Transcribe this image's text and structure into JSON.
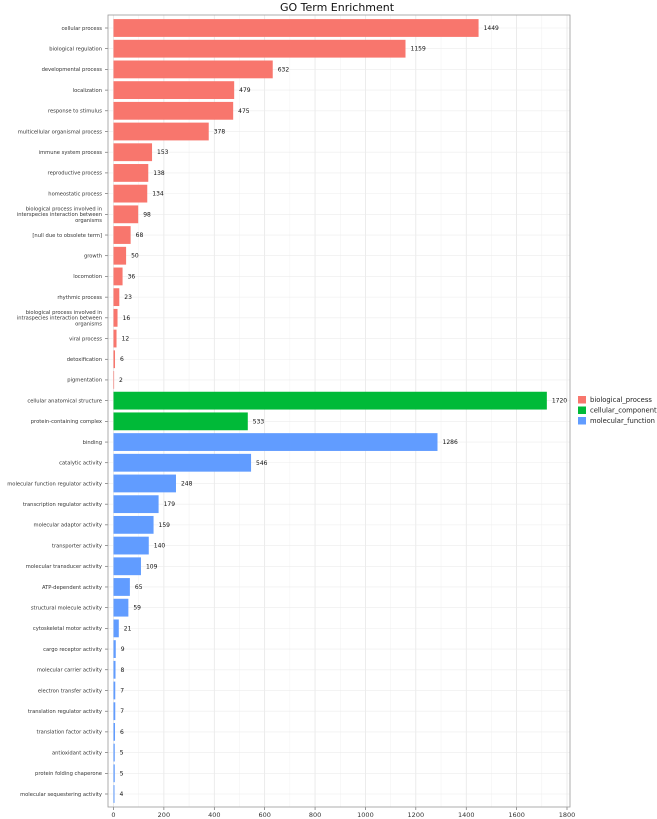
{
  "chart_data": {
    "type": "bar",
    "orientation": "horizontal",
    "title": "GO Term Enrichment",
    "xlabel": "",
    "ylabel": "",
    "xlim": [
      0,
      1800
    ],
    "x_ticks": [
      0,
      200,
      400,
      600,
      800,
      1000,
      1200,
      1400,
      1600,
      1800
    ],
    "grid": true,
    "legend_position": "right",
    "groups": [
      {
        "name": "biological_process",
        "color": "#F8766D"
      },
      {
        "name": "cellular_component",
        "color": "#00BA38"
      },
      {
        "name": "molecular_function",
        "color": "#619CFF"
      }
    ],
    "bars": [
      {
        "label": "cellular process",
        "value": 1449,
        "group": "biological_process"
      },
      {
        "label": "biological regulation",
        "value": 1159,
        "group": "biological_process"
      },
      {
        "label": "developmental process",
        "value": 632,
        "group": "biological_process"
      },
      {
        "label": "localization",
        "value": 479,
        "group": "biological_process"
      },
      {
        "label": "response to stimulus",
        "value": 475,
        "group": "biological_process"
      },
      {
        "label": "multicellular organismal process",
        "value": 378,
        "group": "biological_process"
      },
      {
        "label": "immune system process",
        "value": 153,
        "group": "biological_process"
      },
      {
        "label": "reproductive process",
        "value": 138,
        "group": "biological_process"
      },
      {
        "label": "homeostatic process",
        "value": 134,
        "group": "biological_process"
      },
      {
        "label": "biological process involved in interspecies interaction between organisms",
        "lines": [
          "biological process involved in",
          "interspecies interaction between",
          "organisms"
        ],
        "value": 98,
        "group": "biological_process"
      },
      {
        "label": "[null due to obsolete term]",
        "value": 68,
        "group": "biological_process"
      },
      {
        "label": "growth",
        "value": 50,
        "group": "biological_process"
      },
      {
        "label": "locomotion",
        "value": 36,
        "group": "biological_process"
      },
      {
        "label": "rhythmic process",
        "value": 23,
        "group": "biological_process"
      },
      {
        "label": "biological process involved in intraspecies interaction between organisms",
        "lines": [
          "biological process involved in",
          "intraspecies interaction between",
          "organisms"
        ],
        "value": 16,
        "group": "biological_process"
      },
      {
        "label": "viral process",
        "value": 12,
        "group": "biological_process"
      },
      {
        "label": "detoxification",
        "value": 6,
        "group": "biological_process"
      },
      {
        "label": "pigmentation",
        "value": 2,
        "group": "biological_process"
      },
      {
        "label": "cellular anatomical structure",
        "value": 1720,
        "group": "cellular_component"
      },
      {
        "label": "protein-containing complex",
        "value": 533,
        "group": "cellular_component"
      },
      {
        "label": "binding",
        "value": 1286,
        "group": "molecular_function"
      },
      {
        "label": "catalytic activity",
        "value": 546,
        "group": "molecular_function"
      },
      {
        "label": "molecular function regulator activity",
        "value": 248,
        "group": "molecular_function"
      },
      {
        "label": "transcription regulator activity",
        "value": 179,
        "group": "molecular_function"
      },
      {
        "label": "molecular adaptor activity",
        "value": 159,
        "group": "molecular_function"
      },
      {
        "label": "transporter activity",
        "value": 140,
        "group": "molecular_function"
      },
      {
        "label": "molecular transducer activity",
        "value": 109,
        "group": "molecular_function"
      },
      {
        "label": "ATP-dependent activity",
        "value": 65,
        "group": "molecular_function"
      },
      {
        "label": "structural molecule activity",
        "value": 59,
        "group": "molecular_function"
      },
      {
        "label": "cytoskeletal motor activity",
        "value": 21,
        "group": "molecular_function"
      },
      {
        "label": "cargo receptor activity",
        "value": 9,
        "group": "molecular_function"
      },
      {
        "label": "molecular carrier activity",
        "value": 8,
        "group": "molecular_function"
      },
      {
        "label": "electron transfer activity",
        "value": 7,
        "group": "molecular_function"
      },
      {
        "label": "translation regulator activity",
        "value": 7,
        "group": "molecular_function"
      },
      {
        "label": "translation factor activity",
        "value": 6,
        "group": "molecular_function"
      },
      {
        "label": "antioxidant activity",
        "value": 5,
        "group": "molecular_function"
      },
      {
        "label": "protein folding chaperone",
        "value": 5,
        "group": "molecular_function"
      },
      {
        "label": "molecular sequestering activity",
        "value": 4,
        "group": "molecular_function"
      }
    ]
  }
}
